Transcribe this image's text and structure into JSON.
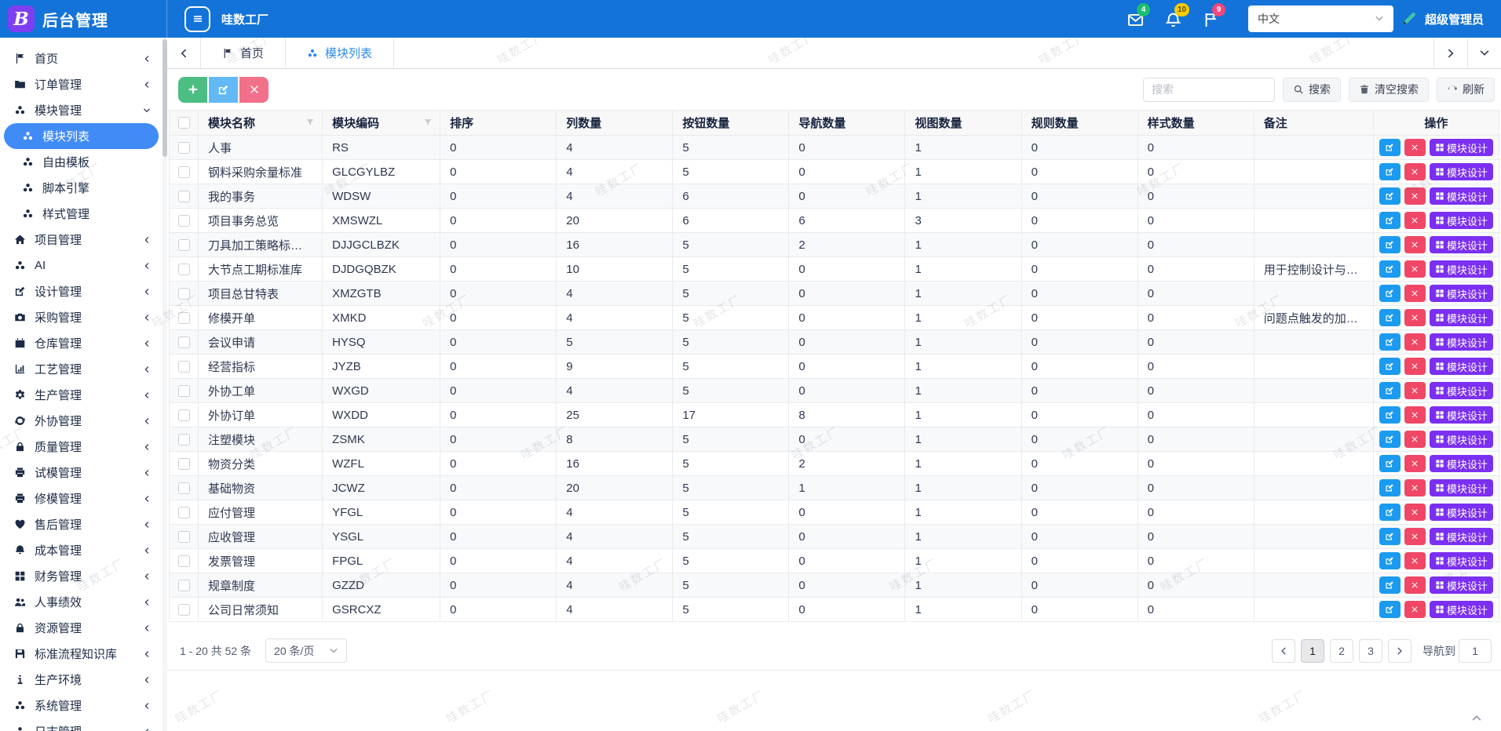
{
  "app": {
    "logo_letter": "B",
    "title": "后台管理",
    "workspace": "哇数工厂",
    "language": "中文",
    "user": "超级管理员"
  },
  "header": {
    "mail_badge": "4",
    "bell_badge": "10",
    "flag_badge": "9"
  },
  "sidebar": {
    "items": [
      {
        "label": "首页",
        "icon": "flag",
        "chevron": "collapsed"
      },
      {
        "label": "订单管理",
        "icon": "folder",
        "chevron": "collapsed"
      },
      {
        "label": "模块管理",
        "icon": "cubes",
        "chevron": "expanded"
      },
      {
        "label": "模块列表",
        "icon": "cubes",
        "level": 1,
        "active": true
      },
      {
        "label": "自由模板",
        "icon": "cubes",
        "level": 1
      },
      {
        "label": "脚本引擎",
        "icon": "cubes",
        "level": 1
      },
      {
        "label": "样式管理",
        "icon": "cubes",
        "level": 1
      },
      {
        "label": "项目管理",
        "icon": "home",
        "chevron": "collapsed"
      },
      {
        "label": "AI",
        "icon": "cubes",
        "chevron": "collapsed"
      },
      {
        "label": "设计管理",
        "icon": "pencil-square",
        "chevron": "collapsed"
      },
      {
        "label": "采购管理",
        "icon": "camera",
        "chevron": "collapsed"
      },
      {
        "label": "仓库管理",
        "icon": "calendar",
        "chevron": "collapsed"
      },
      {
        "label": "工艺管理",
        "icon": "chart",
        "chevron": "collapsed"
      },
      {
        "label": "生产管理",
        "icon": "gear",
        "chevron": "collapsed"
      },
      {
        "label": "外协管理",
        "icon": "sync",
        "chevron": "collapsed"
      },
      {
        "label": "质量管理",
        "icon": "lock",
        "chevron": "collapsed"
      },
      {
        "label": "试模管理",
        "icon": "printer",
        "chevron": "collapsed"
      },
      {
        "label": "修模管理",
        "icon": "printer",
        "chevron": "collapsed"
      },
      {
        "label": "售后管理",
        "icon": "heart",
        "chevron": "collapsed"
      },
      {
        "label": "成本管理",
        "icon": "bell",
        "chevron": "collapsed"
      },
      {
        "label": "财务管理",
        "icon": "table-grid",
        "chevron": "collapsed"
      },
      {
        "label": "人事绩效",
        "icon": "users",
        "chevron": "collapsed"
      },
      {
        "label": "资源管理",
        "icon": "lock",
        "chevron": "collapsed"
      },
      {
        "label": "标准流程知识库",
        "icon": "save",
        "chevron": "collapsed"
      },
      {
        "label": "生产环境",
        "icon": "info",
        "chevron": "collapsed"
      },
      {
        "label": "系统管理",
        "icon": "cubes",
        "chevron": "collapsed"
      },
      {
        "label": "日志管理",
        "icon": "cubes",
        "chevron": "collapsed"
      }
    ]
  },
  "tabs": {
    "items": [
      {
        "label": "首页",
        "icon": "flag"
      },
      {
        "label": "模块列表",
        "icon": "cubes",
        "active": true
      }
    ]
  },
  "toolbar": {
    "search_placeholder": "搜索",
    "search": "搜索",
    "clear": "清空搜索",
    "refresh": "刷新"
  },
  "table": {
    "columns": [
      {
        "label": "模块名称",
        "filter": true
      },
      {
        "label": "模块编码",
        "filter": true
      },
      {
        "label": "排序"
      },
      {
        "label": "列数量"
      },
      {
        "label": "按钮数量"
      },
      {
        "label": "导航数量"
      },
      {
        "label": "视图数量"
      },
      {
        "label": "规则数量"
      },
      {
        "label": "样式数量"
      },
      {
        "label": "备注"
      },
      {
        "label": "操作"
      }
    ],
    "design_button": "模块设计",
    "rows": [
      [
        "人事",
        "RS",
        "0",
        "4",
        "5",
        "0",
        "1",
        "0",
        "0",
        ""
      ],
      [
        "钢料采购余量标准",
        "GLCGYLBZ",
        "0",
        "4",
        "5",
        "0",
        "1",
        "0",
        "0",
        ""
      ],
      [
        "我的事务",
        "WDSW",
        "0",
        "4",
        "6",
        "0",
        "1",
        "0",
        "0",
        ""
      ],
      [
        "项目事务总览",
        "XMSWZL",
        "0",
        "20",
        "6",
        "6",
        "3",
        "0",
        "0",
        ""
      ],
      [
        "刀具加工策略标准库",
        "DJJGCLBZK",
        "0",
        "16",
        "5",
        "2",
        "1",
        "0",
        "0",
        ""
      ],
      [
        "大节点工期标准库",
        "DJDGQBZK",
        "0",
        "10",
        "5",
        "0",
        "1",
        "0",
        "0",
        "用于控制设计与制造大周"
      ],
      [
        "项目总甘特表",
        "XMZGTB",
        "0",
        "4",
        "5",
        "0",
        "1",
        "0",
        "0",
        ""
      ],
      [
        "修模开单",
        "XMKD",
        "0",
        "4",
        "5",
        "0",
        "1",
        "0",
        "0",
        "问题点触发的加工开单"
      ],
      [
        "会议申请",
        "HYSQ",
        "0",
        "5",
        "5",
        "0",
        "1",
        "0",
        "0",
        ""
      ],
      [
        "经营指标",
        "JYZB",
        "0",
        "9",
        "5",
        "0",
        "1",
        "0",
        "0",
        ""
      ],
      [
        "外协工单",
        "WXGD",
        "0",
        "4",
        "5",
        "0",
        "1",
        "0",
        "0",
        ""
      ],
      [
        "外协订单",
        "WXDD",
        "0",
        "25",
        "17",
        "8",
        "1",
        "0",
        "0",
        ""
      ],
      [
        "注塑模块",
        "ZSMK",
        "0",
        "8",
        "5",
        "0",
        "1",
        "0",
        "0",
        ""
      ],
      [
        "物资分类",
        "WZFL",
        "0",
        "16",
        "5",
        "2",
        "1",
        "0",
        "0",
        ""
      ],
      [
        "基础物资",
        "JCWZ",
        "0",
        "20",
        "5",
        "1",
        "1",
        "0",
        "0",
        ""
      ],
      [
        "应付管理",
        "YFGL",
        "0",
        "4",
        "5",
        "0",
        "1",
        "0",
        "0",
        ""
      ],
      [
        "应收管理",
        "YSGL",
        "0",
        "4",
        "5",
        "0",
        "1",
        "0",
        "0",
        ""
      ],
      [
        "发票管理",
        "FPGL",
        "0",
        "4",
        "5",
        "0",
        "1",
        "0",
        "0",
        ""
      ],
      [
        "规章制度",
        "GZZD",
        "0",
        "4",
        "5",
        "0",
        "1",
        "0",
        "0",
        ""
      ],
      [
        "公司日常须知",
        "GSRCXZ",
        "0",
        "4",
        "5",
        "0",
        "1",
        "0",
        "0",
        ""
      ]
    ]
  },
  "pagination": {
    "summary": "1 - 20 共 52 条",
    "page_size": "20 条/页",
    "pages": [
      "1",
      "2",
      "3"
    ],
    "active_page": "1",
    "goto_label": "导航到",
    "goto_value": "1"
  },
  "watermark": "哇数工厂",
  "colors": {
    "header_blue": "#1373d8",
    "logo_purple": "#7e3ff2",
    "active_item": "#418bf7",
    "tab_active": "#2d8cf0",
    "btn_green": "#4dbe83",
    "btn_light_blue": "#63b8f6",
    "btn_pink": "#f2708a",
    "op_edit": "#1b9bf0",
    "op_delete": "#f04766",
    "op_design": "#7b2ff2",
    "badge_green": "#1cbe6f",
    "badge_yellow": "#f8ca00",
    "badge_red": "#f2477c"
  }
}
